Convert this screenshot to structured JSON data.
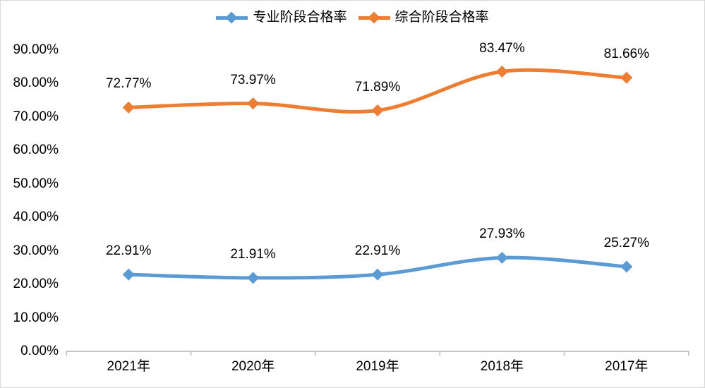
{
  "chart_data": {
    "type": "line",
    "title": "",
    "categories": [
      "2021年",
      "2020年",
      "2019年",
      "2018年",
      "2017年"
    ],
    "series": [
      {
        "name": "专业阶段合格率",
        "color": "#5B9BD5",
        "values": [
          22.91,
          21.91,
          22.91,
          27.93,
          25.27
        ],
        "labels": [
          "22.91%",
          "21.91%",
          "22.91%",
          "27.93%",
          "25.27%"
        ]
      },
      {
        "name": "综合阶段合格率",
        "color": "#ED7D31",
        "values": [
          72.77,
          73.97,
          71.89,
          83.47,
          81.66
        ],
        "labels": [
          "72.77%",
          "73.97%",
          "71.89%",
          "83.47%",
          "81.66%"
        ]
      }
    ],
    "y_axis": {
      "min": 0,
      "max": 90,
      "step": 10,
      "tick_labels": [
        "0.00%",
        "10.00%",
        "20.00%",
        "30.00%",
        "40.00%",
        "50.00%",
        "60.00%",
        "70.00%",
        "80.00%",
        "90.00%"
      ]
    },
    "x_axis": {
      "unit_suffix": "年"
    },
    "grid": false,
    "legend_position": "top",
    "marker": "diamond",
    "smooth_lines": true,
    "colors": {
      "axis_line": "#c6c6c6",
      "border": "#d9d9d9",
      "text": "#000000",
      "background": "#ffffff"
    }
  }
}
